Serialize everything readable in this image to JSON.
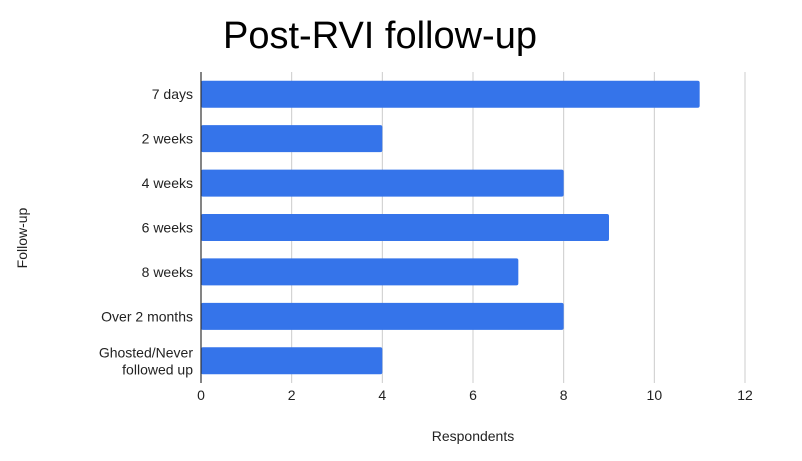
{
  "chart_data": {
    "type": "bar",
    "orientation": "horizontal",
    "title": "Post-RVI follow-up",
    "xlabel": "Respondents",
    "ylabel": "Follow-up",
    "categories": [
      [
        "7 days"
      ],
      [
        "2 weeks"
      ],
      [
        "4 weeks"
      ],
      [
        "6 weeks"
      ],
      [
        "8 weeks"
      ],
      [
        "Over 2 months"
      ],
      [
        "Ghosted/Never",
        "followed up"
      ]
    ],
    "values": [
      11,
      4,
      8,
      9,
      7,
      8,
      4
    ],
    "xlim": [
      0,
      12
    ],
    "xticks": [
      "0",
      "2",
      "4",
      "6",
      "8",
      "10",
      "12"
    ],
    "bar_color": "#3574ea",
    "grid_color": "#cccccc",
    "grid": true,
    "legend": "none"
  }
}
